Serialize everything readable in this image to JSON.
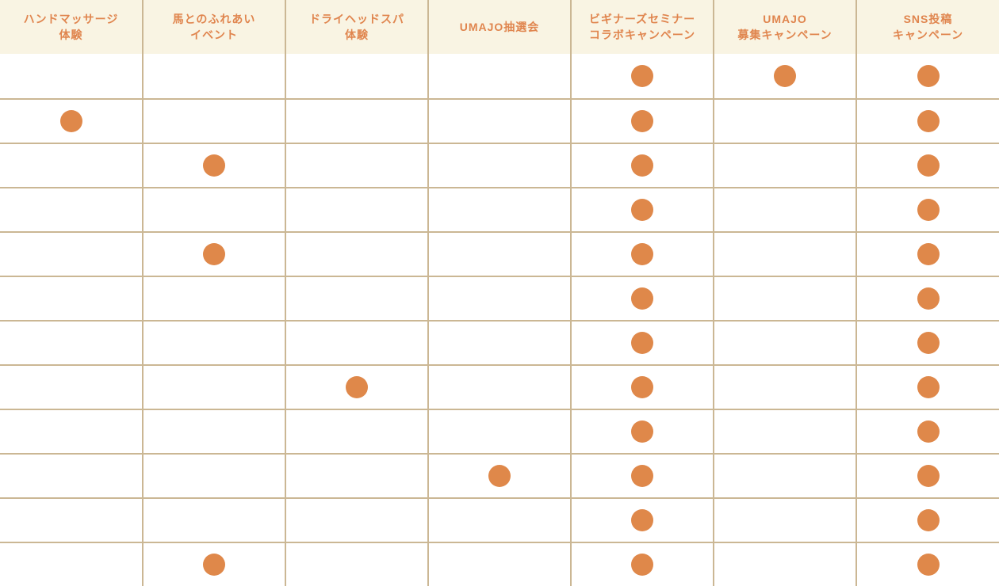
{
  "colors": {
    "header_bg": "#f9f4e3",
    "header_text": "#e0854e",
    "grid_line": "#cbb794",
    "dot": "#df884a",
    "page_bg": "#ffffff"
  },
  "table": {
    "columns": [
      {
        "id": "hand-massage",
        "label": "ハンドマッサージ体験",
        "lines": [
          "ハンドマッサージ",
          "体験"
        ]
      },
      {
        "id": "horse-contact-event",
        "label": "馬とのふれあいイベント",
        "lines": [
          "馬とのふれあい",
          "イベント"
        ]
      },
      {
        "id": "dry-head-spa",
        "label": "ドライヘッドスパ体験",
        "lines": [
          "ドライヘッドスパ",
          "体験"
        ]
      },
      {
        "id": "umajo-lottery",
        "label": "UMAJO抽選会",
        "lines": [
          "UMAJO抽選会"
        ]
      },
      {
        "id": "beginners-seminar-collab",
        "label": "ビギナーズセミナーコラボキャンペーン",
        "lines": [
          "ビギナーズセミナー",
          "コラボキャンペーン"
        ]
      },
      {
        "id": "umajo-recruit-campaign",
        "label": "UMAJO募集キャンペーン",
        "lines": [
          "UMAJO",
          "募集キャンペーン"
        ]
      },
      {
        "id": "sns-post-campaign",
        "label": "SNS投稿キャンペーン",
        "lines": [
          "SNS投稿",
          "キャンペーン"
        ]
      }
    ],
    "dot_meaning": "orange dot = applicable",
    "rows": [
      [
        0,
        0,
        0,
        0,
        1,
        1,
        1
      ],
      [
        1,
        0,
        0,
        0,
        1,
        0,
        1
      ],
      [
        0,
        1,
        0,
        0,
        1,
        0,
        1
      ],
      [
        0,
        0,
        0,
        0,
        1,
        0,
        1
      ],
      [
        0,
        1,
        0,
        0,
        1,
        0,
        1
      ],
      [
        0,
        0,
        0,
        0,
        1,
        0,
        1
      ],
      [
        0,
        0,
        0,
        0,
        1,
        0,
        1
      ],
      [
        0,
        0,
        1,
        0,
        1,
        0,
        1
      ],
      [
        0,
        0,
        0,
        0,
        1,
        0,
        1
      ],
      [
        0,
        0,
        0,
        1,
        1,
        0,
        1
      ],
      [
        0,
        0,
        0,
        0,
        1,
        0,
        1
      ],
      [
        0,
        1,
        0,
        0,
        1,
        0,
        1
      ]
    ]
  },
  "chart_data": {
    "type": "table",
    "title": "",
    "columns": [
      "ハンドマッサージ体験",
      "馬とのふれあいイベント",
      "ドライヘッドスパ体験",
      "UMAJO抽選会",
      "ビギナーズセミナーコラボキャンペーン",
      "UMAJO募集キャンペーン",
      "SNS投稿キャンペーン"
    ],
    "rows": [
      [
        0,
        0,
        0,
        0,
        1,
        1,
        1
      ],
      [
        1,
        0,
        0,
        0,
        1,
        0,
        1
      ],
      [
        0,
        1,
        0,
        0,
        1,
        0,
        1
      ],
      [
        0,
        0,
        0,
        0,
        1,
        0,
        1
      ],
      [
        0,
        1,
        0,
        0,
        1,
        0,
        1
      ],
      [
        0,
        0,
        0,
        0,
        1,
        0,
        1
      ],
      [
        0,
        0,
        0,
        0,
        1,
        0,
        1
      ],
      [
        0,
        0,
        1,
        0,
        1,
        0,
        1
      ],
      [
        0,
        0,
        0,
        0,
        1,
        0,
        1
      ],
      [
        0,
        0,
        0,
        1,
        1,
        0,
        1
      ],
      [
        0,
        0,
        0,
        0,
        1,
        0,
        1
      ],
      [
        0,
        1,
        0,
        0,
        1,
        0,
        1
      ]
    ],
    "cell_encoding": "1 = orange dot present, 0 = empty cell",
    "grid": true,
    "legend_position": "none"
  }
}
